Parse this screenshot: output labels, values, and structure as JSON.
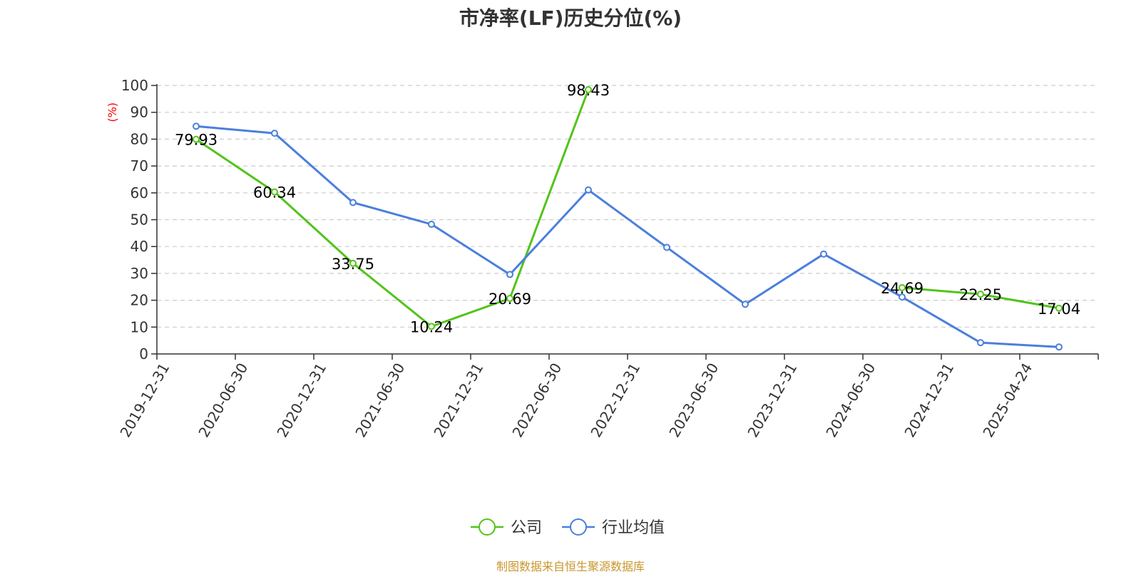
{
  "chart_data": {
    "type": "line",
    "title": "市净率(LF)历史分位(%)",
    "yunit": "(%)",
    "ylim": [
      0,
      100
    ],
    "yticks": [
      0,
      10,
      20,
      30,
      40,
      50,
      60,
      70,
      80,
      90,
      100
    ],
    "categories": [
      "2019-12-31",
      "2020-06-30",
      "2020-12-31",
      "2021-06-30",
      "2021-12-31",
      "2022-06-30",
      "2022-12-31",
      "2023-06-30",
      "2023-12-31",
      "2024-06-30",
      "2024-12-31",
      "2025-04-24"
    ],
    "grid": true,
    "legend_position": "bottom",
    "series": [
      {
        "name": "公司",
        "color": "#52c41a",
        "values": [
          79.93,
          60.34,
          33.75,
          10.24,
          20.69,
          98.43,
          null,
          null,
          null,
          24.69,
          22.25,
          17.04
        ],
        "data_labels": [
          "79.93",
          "60.34",
          "33.75",
          "10.24",
          "20.69",
          "98.43",
          "",
          "",
          "",
          "24.69",
          "22.25",
          "17.04"
        ]
      },
      {
        "name": "行业均值",
        "color": "#4a7fdd",
        "values": [
          84.8,
          82.2,
          56.4,
          48.3,
          29.6,
          61.1,
          39.7,
          18.5,
          37.2,
          21.2,
          4.2,
          2.6
        ]
      }
    ]
  },
  "source_note": "制图数据来自恒生聚源数据库"
}
